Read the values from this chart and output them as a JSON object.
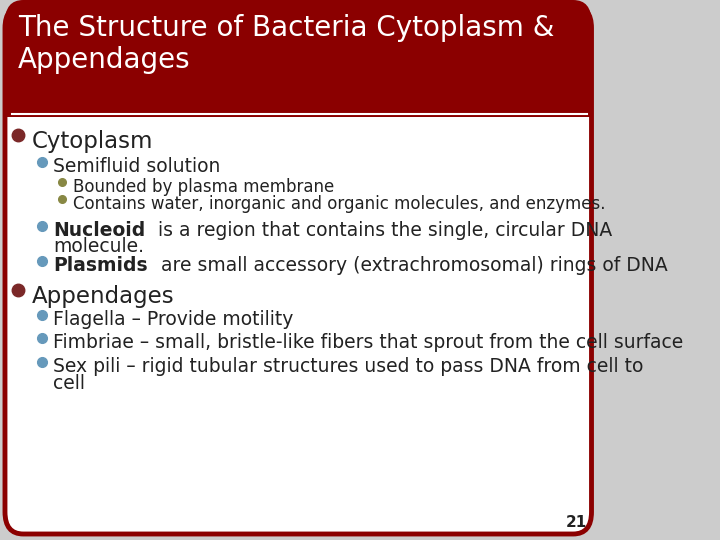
{
  "title_line1": "The Structure of Bacteria Cytoplasm &",
  "title_line2": "Appendages",
  "title_bg_color": "#8B0000",
  "title_text_color": "#FFFFFF",
  "slide_bg_color": "#FFFFFF",
  "border_color": "#8B0000",
  "page_number": "21",
  "outer_bg": "#CCCCCC",
  "separator_color": "#FFFFFF",
  "text_color": "#222222",
  "bullet_l1_color": "#7B2828",
  "bullet_l2_color": "#6699BB",
  "bullet_l3_color": "#888844"
}
